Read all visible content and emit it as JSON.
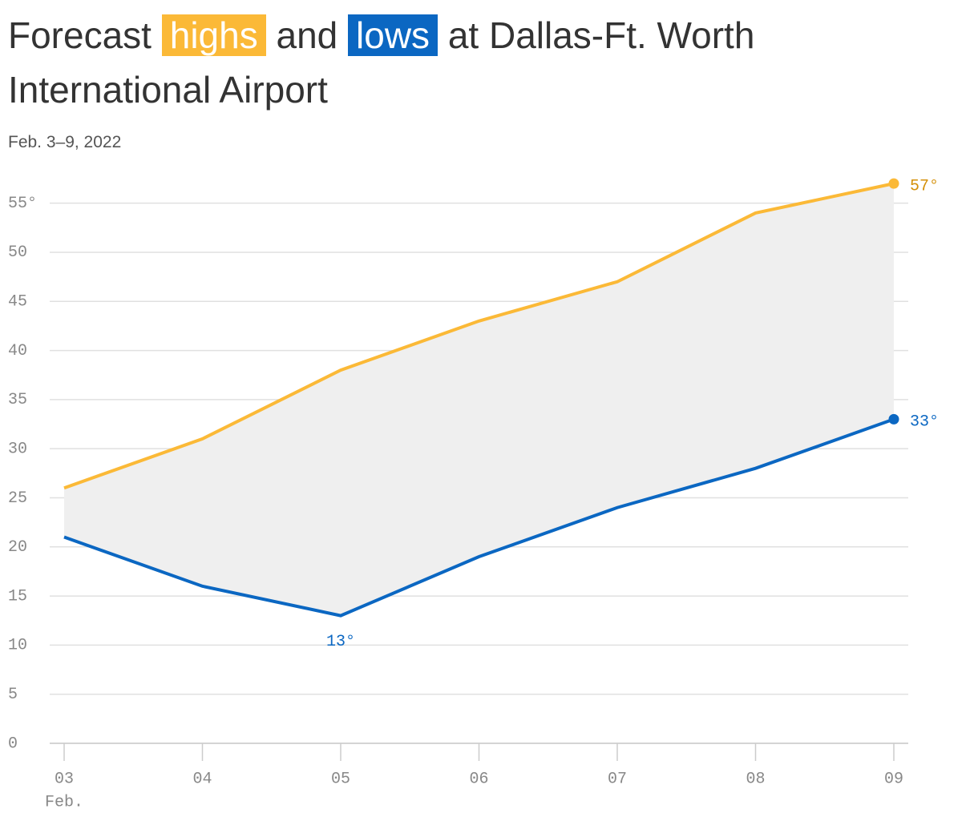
{
  "chart_data": {
    "type": "line",
    "title_parts": [
      "Forecast",
      "and",
      "at Dallas-Ft. Worth International Airport"
    ],
    "subtitle": "Feb. 3–9, 2022",
    "categories": [
      "03",
      "04",
      "05",
      "06",
      "07",
      "08",
      "09"
    ],
    "x_sublabel": "Feb.",
    "series": [
      {
        "name": "highs",
        "color": "#fbb937",
        "label_color": "#d4900a",
        "values": [
          26,
          31,
          38,
          43,
          47,
          54,
          57
        ],
        "value_labels": [
          null,
          null,
          null,
          null,
          null,
          null,
          "57°"
        ]
      },
      {
        "name": "lows",
        "color": "#0b67c2",
        "label_color": "#0b67c2",
        "values": [
          21,
          16,
          13,
          19,
          24,
          28,
          33
        ],
        "value_labels": [
          null,
          null,
          "13°",
          null,
          null,
          null,
          "33°"
        ]
      }
    ],
    "band_color": "#efefef",
    "ylim": [
      0,
      57.5
    ],
    "yticks": [
      0,
      5,
      10,
      15,
      20,
      25,
      30,
      35,
      40,
      45,
      50,
      {
        "value": 55,
        "label": "55°"
      }
    ],
    "grid": true
  }
}
